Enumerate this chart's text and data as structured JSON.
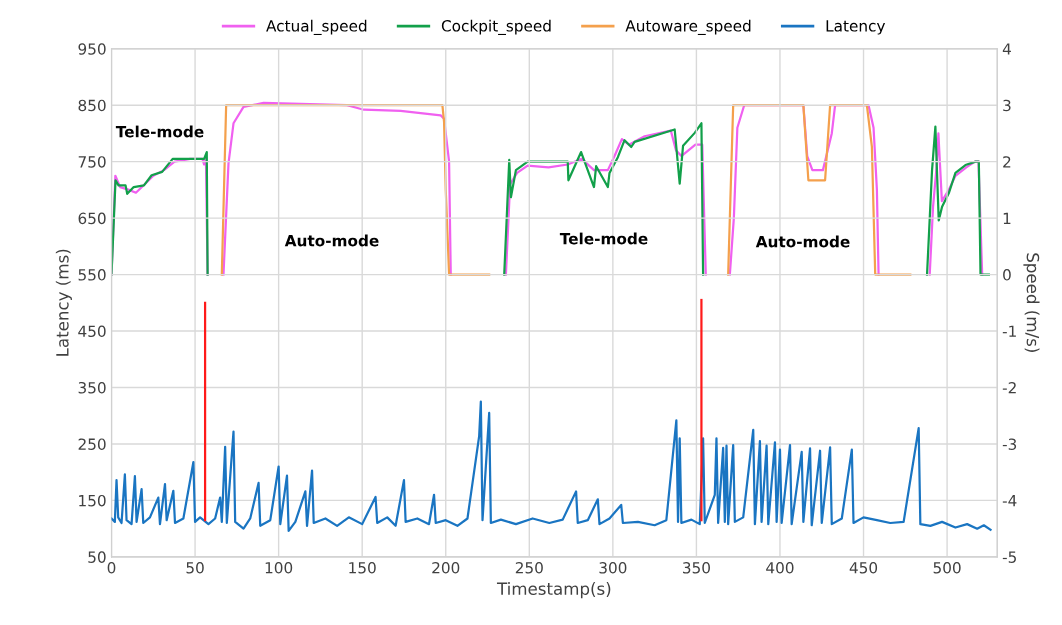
{
  "chart_data": {
    "type": "line",
    "xlabel": "Timestamp(s)",
    "ylabel": "Latency (ms)",
    "y2label": "Speed (m/s)",
    "xlim": [
      0,
      530
    ],
    "xticks": [
      0,
      50,
      100,
      150,
      200,
      250,
      300,
      350,
      400,
      450,
      500
    ],
    "ylim": [
      50,
      950
    ],
    "yticks": [
      50,
      150,
      250,
      350,
      450,
      550,
      650,
      750,
      850,
      950
    ],
    "y2lim": [
      -5,
      4
    ],
    "y2ticks": [
      -5,
      -4,
      -3,
      -2,
      -1,
      0,
      1,
      2,
      3,
      4
    ],
    "grid": true,
    "legend": "top",
    "marker": "none",
    "line_style": "solid",
    "annotations": [
      "Tele-mode",
      "Auto-mode",
      "Tele-mode",
      "Auto-mode"
    ],
    "series": [
      {
        "name": "Actual_speed",
        "color": "#f060f0",
        "axis": "y2",
        "x": [
          0,
          2.3,
          5.2,
          10.5,
          14.6,
          19.9,
          25,
          31.4,
          37.7,
          47,
          54.4,
          55.4,
          56.5,
          57.5,
          62,
          67,
          70,
          73,
          79,
          91,
          141,
          151,
          173,
          197,
          199,
          202,
          203,
          220,
          236,
          238.5,
          242.7,
          249,
          261.5,
          273,
          281.4,
          288.7,
          297,
          301,
          305.4,
          309.6,
          319,
          334.7,
          337.8,
          341,
          349.4,
          353.5,
          355.6,
          362,
          370,
          372.4,
          374.5,
          378.6,
          414,
          416.3,
          419.4,
          425.7,
          431,
          433,
          453,
          456,
          458,
          459,
          470,
          489.6,
          491.6,
          493.7,
          494.8,
          496.9,
          501,
          505,
          511.5,
          516.7,
          518.8,
          521
        ],
        "values": [
          0,
          1.75,
          1.55,
          1.5,
          1.45,
          1.6,
          1.75,
          1.85,
          2.0,
          2.05,
          2.05,
          1.95,
          2.05,
          0,
          null,
          0,
          1.97,
          2.68,
          2.97,
          3.04,
          3.0,
          2.92,
          2.9,
          2.82,
          2.76,
          2.0,
          0,
          null,
          0,
          1.6,
          1.8,
          1.93,
          1.9,
          1.95,
          2.05,
          1.85,
          1.85,
          2.1,
          2.4,
          2.3,
          2.45,
          2.55,
          2.2,
          2.1,
          2.3,
          2.3,
          0,
          null,
          0,
          1.0,
          2.6,
          3.0,
          3.0,
          2.1,
          1.85,
          1.85,
          2.5,
          3.0,
          3.0,
          2.6,
          1.5,
          0,
          null,
          0,
          1.2,
          1.9,
          2.5,
          1.3,
          1.5,
          1.75,
          1.9,
          2.0,
          2.0,
          0
        ]
      },
      {
        "name": "Cockpit_speed",
        "color": "#12a04a",
        "axis": "y2",
        "x": [
          0,
          2.4,
          4.2,
          8.4,
          9.4,
          13.3,
          19.4,
          24,
          30.3,
          36.6,
          45,
          55.4,
          57,
          57.5,
          146,
          235,
          238,
          239,
          242,
          249,
          273,
          273.4,
          281,
          288.7,
          290,
          297,
          298,
          303,
          307,
          311,
          313,
          337,
          340,
          342,
          349,
          353,
          354,
          420,
          488,
          491,
          493,
          495,
          497,
          501,
          505,
          511,
          517,
          519,
          520,
          525
        ],
        "values": [
          0,
          1.67,
          1.58,
          1.58,
          1.43,
          1.55,
          1.58,
          1.76,
          1.82,
          2.05,
          2.05,
          2.05,
          2.17,
          0,
          null,
          0,
          2.03,
          1.37,
          1.85,
          2.0,
          2.0,
          1.67,
          2.17,
          1.55,
          1.92,
          1.55,
          1.8,
          2.08,
          2.38,
          2.26,
          2.35,
          2.57,
          1.61,
          2.28,
          2.51,
          2.68,
          0,
          null,
          0,
          1.85,
          2.62,
          0.96,
          1.2,
          1.44,
          1.8,
          1.94,
          2.0,
          2.0,
          0,
          0
        ]
      },
      {
        "name": "Autoware_speed",
        "color": "#f4a04c",
        "axis": "y2",
        "x": [
          66,
          68.6,
          198,
          199,
          200,
          202,
          226,
          300,
          369,
          372,
          414,
          417,
          427,
          430,
          452,
          455,
          457,
          478
        ],
        "values": [
          0,
          3,
          3,
          2.7,
          1.5,
          0,
          0,
          null,
          0,
          3,
          3,
          1.67,
          1.67,
          3,
          3,
          2.26,
          0,
          0
        ]
      },
      {
        "name": "Latency",
        "color": "#1a75c2",
        "axis": "y",
        "x": [
          0,
          2,
          3,
          4,
          6,
          8,
          9,
          12,
          14,
          15,
          18,
          19,
          23,
          28,
          29,
          32,
          33,
          37,
          38,
          43,
          49,
          50,
          53,
          58,
          62,
          65,
          66,
          68,
          69,
          73,
          74,
          79,
          83,
          88,
          89,
          95,
          100,
          101,
          105,
          106,
          110,
          116,
          117,
          120,
          121,
          128,
          135,
          142,
          150,
          158,
          159,
          165,
          170,
          175,
          176,
          183,
          190,
          193,
          194,
          200,
          207,
          213,
          220,
          221,
          222,
          226,
          227,
          233,
          242,
          252,
          262,
          270,
          278,
          279,
          285,
          291,
          292,
          298,
          305,
          306,
          315,
          325,
          332,
          338,
          339,
          340,
          341,
          347,
          352,
          354,
          355,
          361,
          362,
          363,
          366,
          367,
          368,
          369,
          372,
          373,
          378,
          384,
          385,
          388,
          389,
          392,
          393,
          397,
          398,
          400,
          401,
          406,
          407,
          413,
          414,
          418,
          419,
          424,
          425,
          430,
          431,
          437,
          443,
          444,
          450,
          458,
          466,
          474,
          483,
          484,
          490,
          497,
          505,
          512,
          518,
          522,
          526
        ],
        "values": [
          118,
          112,
          186,
          120,
          110,
          196,
          115,
          108,
          193,
          112,
          170,
          110,
          120,
          155,
          108,
          179,
          115,
          167,
          110,
          118,
          218,
          112,
          120,
          108,
          118,
          155,
          112,
          245,
          110,
          272,
          112,
          100,
          118,
          181,
          105,
          115,
          210,
          108,
          194,
          96,
          112,
          166,
          105,
          203,
          110,
          118,
          105,
          120,
          108,
          156,
          110,
          120,
          105,
          186,
          112,
          118,
          108,
          160,
          110,
          115,
          105,
          118,
          264,
          325,
          115,
          305,
          110,
          116,
          108,
          118,
          110,
          116,
          166,
          110,
          115,
          152,
          108,
          118,
          142,
          110,
          112,
          106,
          115,
          292,
          112,
          260,
          110,
          116,
          108,
          260,
          110,
          160,
          260,
          110,
          243,
          112,
          247,
          108,
          248,
          112,
          120,
          275,
          108,
          255,
          112,
          247,
          108,
          253,
          112,
          240,
          110,
          248,
          108,
          236,
          112,
          242,
          106,
          238,
          110,
          244,
          108,
          118,
          240,
          110,
          120,
          115,
          110,
          112,
          278,
          108,
          105,
          112,
          102,
          108,
          100,
          106,
          98
        ]
      },
      {
        "color": "#ff1a1a",
        "axis": "y",
        "x": [
          56,
          56
        ],
        "values": [
          115,
          500
        ]
      },
      {
        "color": "#ff1a1a",
        "axis": "y",
        "x": [
          353,
          353
        ],
        "values": [
          115,
          505
        ]
      }
    ]
  }
}
